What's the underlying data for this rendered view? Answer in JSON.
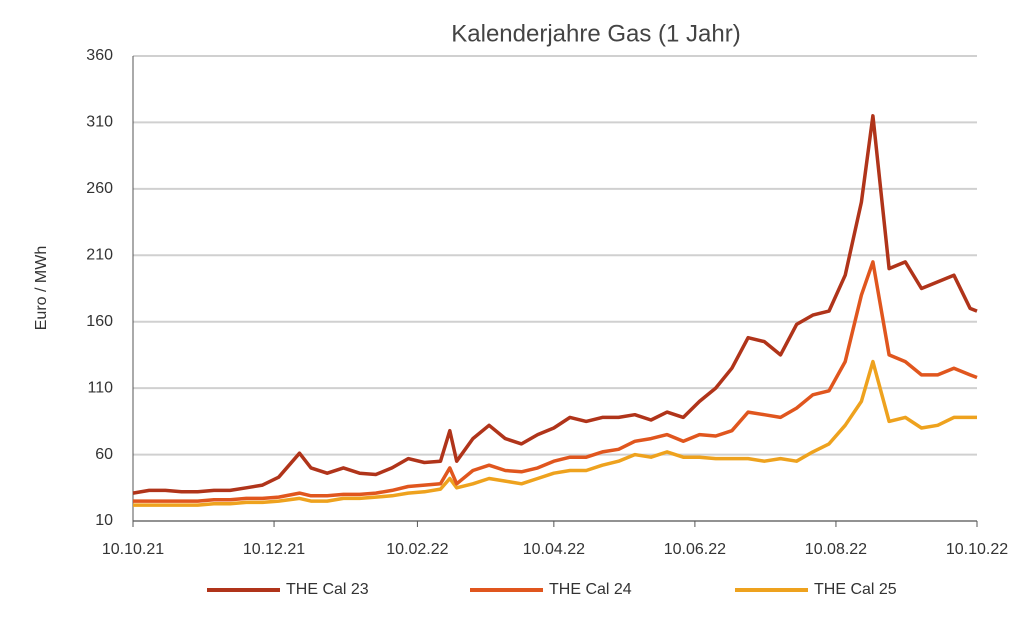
{
  "chart_data": {
    "type": "line",
    "title": "Kalenderjahre Gas (1 Jahr)",
    "y_label": "Euro / MWh",
    "x": [
      "10.10.21",
      "17.10.21",
      "24.10.21",
      "31.10.21",
      "07.11.21",
      "14.11.21",
      "21.11.21",
      "28.11.21",
      "05.12.21",
      "12.12.21",
      "21.12.21",
      "26.12.21",
      "02.01.22",
      "09.01.22",
      "16.01.22",
      "23.01.22",
      "30.01.22",
      "06.02.22",
      "13.02.22",
      "20.02.22",
      "24.02.22",
      "27.02.22",
      "06.03.22",
      "13.03.22",
      "20.03.22",
      "27.03.22",
      "03.04.22",
      "10.04.22",
      "17.04.22",
      "24.04.22",
      "01.05.22",
      "08.05.22",
      "15.05.22",
      "22.05.22",
      "29.05.22",
      "05.06.22",
      "12.06.22",
      "19.06.22",
      "26.06.22",
      "03.07.22",
      "10.07.22",
      "17.07.22",
      "24.07.22",
      "31.07.22",
      "07.08.22",
      "14.08.22",
      "21.08.22",
      "26.08.22",
      "02.09.22",
      "09.09.22",
      "16.09.22",
      "23.09.22",
      "30.09.22",
      "07.10.22",
      "10.10.22"
    ],
    "series": [
      {
        "name": "THE Cal 23",
        "color": "#b0341a",
        "values": [
          31,
          33,
          33,
          32,
          32,
          33,
          33,
          35,
          37,
          43,
          61,
          50,
          46,
          50,
          46,
          45,
          50,
          57,
          54,
          55,
          78,
          55,
          72,
          82,
          72,
          68,
          75,
          80,
          88,
          85,
          88,
          88,
          90,
          86,
          92,
          88,
          100,
          110,
          125,
          148,
          145,
          135,
          158,
          165,
          168,
          195,
          250,
          315,
          200,
          205,
          185,
          190,
          195,
          170,
          168
        ]
      },
      {
        "name": "THE Cal 24",
        "color": "#e0561e",
        "values": [
          25,
          25,
          25,
          25,
          25,
          26,
          26,
          27,
          27,
          28,
          31,
          29,
          29,
          30,
          30,
          31,
          33,
          36,
          37,
          38,
          50,
          38,
          48,
          52,
          48,
          47,
          50,
          55,
          58,
          58,
          62,
          64,
          70,
          72,
          75,
          70,
          75,
          74,
          78,
          92,
          90,
          88,
          95,
          105,
          108,
          130,
          180,
          205,
          135,
          130,
          120,
          120,
          125,
          120,
          118
        ]
      },
      {
        "name": "THE Cal 25",
        "color": "#eea21e",
        "values": [
          22,
          22,
          22,
          22,
          22,
          23,
          23,
          24,
          24,
          25,
          27,
          25,
          25,
          27,
          27,
          28,
          29,
          31,
          32,
          34,
          42,
          35,
          38,
          42,
          40,
          38,
          42,
          46,
          48,
          48,
          52,
          55,
          60,
          58,
          62,
          58,
          58,
          57,
          57,
          57,
          55,
          57,
          55,
          62,
          68,
          82,
          100,
          130,
          85,
          88,
          80,
          82,
          88,
          88,
          88
        ]
      }
    ],
    "xlim": [
      "10.10.21",
      "10.10.22"
    ],
    "xticks": [
      "10.10.21",
      "10.12.21",
      "10.02.22",
      "10.04.22",
      "10.06.22",
      "10.08.22",
      "10.10.22"
    ],
    "ylim": [
      10,
      360
    ],
    "yticks": [
      10,
      60,
      110,
      160,
      210,
      260,
      310,
      360
    ],
    "grid": true,
    "legend": "bottom"
  }
}
